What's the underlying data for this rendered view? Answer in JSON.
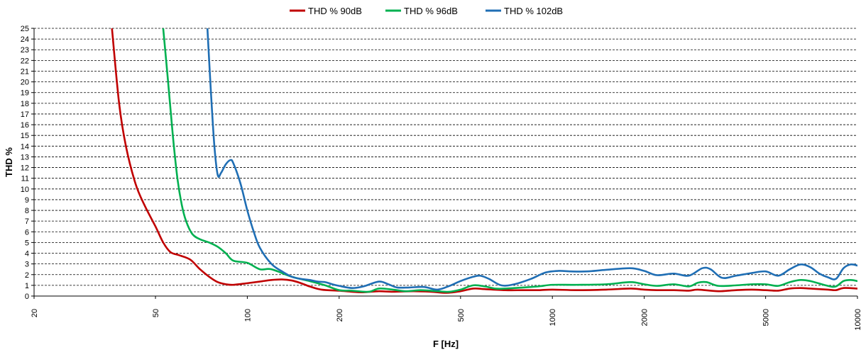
{
  "chart_data": {
    "type": "line",
    "xlabel": "F [Hz]",
    "ylabel": "THD %",
    "xscale": "log",
    "xlim": [
      20,
      10000
    ],
    "ylim": [
      0,
      25
    ],
    "xticks": [
      20,
      50,
      100,
      200,
      500,
      1000,
      2000,
      5000,
      10000
    ],
    "yticks": [
      0,
      1,
      2,
      3,
      4,
      5,
      6,
      7,
      8,
      9,
      10,
      11,
      12,
      13,
      14,
      15,
      16,
      17,
      18,
      19,
      20,
      21,
      22,
      23,
      24,
      25
    ],
    "grid": true,
    "legend": "top-center",
    "series": [
      {
        "name": "THD % 90dB",
        "color": "#c00000",
        "points": [
          [
            36,
            25
          ],
          [
            38,
            18
          ],
          [
            40,
            14
          ],
          [
            43,
            10.5
          ],
          [
            46,
            8.5
          ],
          [
            50,
            6.5
          ],
          [
            53,
            5
          ],
          [
            56,
            4.1
          ],
          [
            60,
            3.8
          ],
          [
            65,
            3.4
          ],
          [
            70,
            2.5
          ],
          [
            75,
            1.8
          ],
          [
            80,
            1.3
          ],
          [
            85,
            1.1
          ],
          [
            90,
            1.05
          ],
          [
            100,
            1.2
          ],
          [
            110,
            1.35
          ],
          [
            120,
            1.5
          ],
          [
            130,
            1.55
          ],
          [
            140,
            1.45
          ],
          [
            150,
            1.2
          ],
          [
            160,
            0.9
          ],
          [
            175,
            0.6
          ],
          [
            200,
            0.5
          ],
          [
            220,
            0.4
          ],
          [
            240,
            0.35
          ],
          [
            270,
            0.45
          ],
          [
            300,
            0.4
          ],
          [
            350,
            0.45
          ],
          [
            400,
            0.4
          ],
          [
            450,
            0.3
          ],
          [
            500,
            0.45
          ],
          [
            550,
            0.7
          ],
          [
            600,
            0.65
          ],
          [
            700,
            0.55
          ],
          [
            800,
            0.55
          ],
          [
            900,
            0.55
          ],
          [
            1000,
            0.6
          ],
          [
            1200,
            0.55
          ],
          [
            1500,
            0.6
          ],
          [
            1800,
            0.7
          ],
          [
            2000,
            0.6
          ],
          [
            2200,
            0.55
          ],
          [
            2500,
            0.55
          ],
          [
            2800,
            0.5
          ],
          [
            3000,
            0.6
          ],
          [
            3500,
            0.45
          ],
          [
            4000,
            0.55
          ],
          [
            4500,
            0.6
          ],
          [
            5000,
            0.55
          ],
          [
            5500,
            0.5
          ],
          [
            6000,
            0.7
          ],
          [
            6500,
            0.75
          ],
          [
            7000,
            0.7
          ],
          [
            8000,
            0.6
          ],
          [
            8500,
            0.55
          ],
          [
            9000,
            0.75
          ],
          [
            10000,
            0.7
          ]
        ]
      },
      {
        "name": "THD % 96dB",
        "color": "#00b050",
        "points": [
          [
            53,
            25
          ],
          [
            55,
            20
          ],
          [
            57,
            15
          ],
          [
            59,
            11
          ],
          [
            61,
            8.5
          ],
          [
            63,
            7
          ],
          [
            66,
            5.8
          ],
          [
            70,
            5.3
          ],
          [
            75,
            5
          ],
          [
            80,
            4.6
          ],
          [
            85,
            4
          ],
          [
            90,
            3.3
          ],
          [
            100,
            3.1
          ],
          [
            110,
            2.5
          ],
          [
            120,
            2.5
          ],
          [
            140,
            1.8
          ],
          [
            160,
            1.4
          ],
          [
            180,
            1
          ],
          [
            200,
            0.55
          ],
          [
            220,
            0.5
          ],
          [
            250,
            0.4
          ],
          [
            270,
            0.7
          ],
          [
            300,
            0.6
          ],
          [
            330,
            0.45
          ],
          [
            370,
            0.55
          ],
          [
            420,
            0.45
          ],
          [
            460,
            0.4
          ],
          [
            500,
            0.6
          ],
          [
            550,
            1
          ],
          [
            600,
            0.9
          ],
          [
            650,
            0.7
          ],
          [
            700,
            0.7
          ],
          [
            800,
            0.8
          ],
          [
            900,
            0.9
          ],
          [
            1000,
            1.05
          ],
          [
            1200,
            1.05
          ],
          [
            1500,
            1.1
          ],
          [
            1800,
            1.3
          ],
          [
            2000,
            1.1
          ],
          [
            2200,
            0.95
          ],
          [
            2500,
            1.1
          ],
          [
            2800,
            0.9
          ],
          [
            3000,
            1.25
          ],
          [
            3200,
            1.3
          ],
          [
            3500,
            0.95
          ],
          [
            4000,
            1
          ],
          [
            4500,
            1.1
          ],
          [
            5000,
            1.1
          ],
          [
            5500,
            0.95
          ],
          [
            6000,
            1.3
          ],
          [
            6500,
            1.5
          ],
          [
            7000,
            1.4
          ],
          [
            8000,
            0.95
          ],
          [
            8500,
            0.9
          ],
          [
            9000,
            1.4
          ],
          [
            9500,
            1.5
          ],
          [
            10000,
            1.4
          ]
        ]
      },
      {
        "name": "THD % 102dB",
        "color": "#1f6eb4",
        "points": [
          [
            74,
            25
          ],
          [
            76,
            19
          ],
          [
            78,
            14
          ],
          [
            80,
            11.3
          ],
          [
            82,
            11.5
          ],
          [
            85,
            12.3
          ],
          [
            88,
            12.7
          ],
          [
            90,
            12.4
          ],
          [
            95,
            10.5
          ],
          [
            100,
            8
          ],
          [
            105,
            6
          ],
          [
            110,
            4.5
          ],
          [
            120,
            3
          ],
          [
            130,
            2.3
          ],
          [
            140,
            1.8
          ],
          [
            150,
            1.6
          ],
          [
            160,
            1.5
          ],
          [
            170,
            1.35
          ],
          [
            180,
            1.3
          ],
          [
            190,
            1.1
          ],
          [
            200,
            0.95
          ],
          [
            220,
            0.75
          ],
          [
            240,
            0.9
          ],
          [
            270,
            1.35
          ],
          [
            290,
            1.1
          ],
          [
            310,
            0.8
          ],
          [
            340,
            0.8
          ],
          [
            380,
            0.85
          ],
          [
            420,
            0.6
          ],
          [
            460,
            0.95
          ],
          [
            500,
            1.4
          ],
          [
            550,
            1.8
          ],
          [
            580,
            1.9
          ],
          [
            620,
            1.6
          ],
          [
            680,
            1
          ],
          [
            750,
            1.1
          ],
          [
            850,
            1.6
          ],
          [
            950,
            2.2
          ],
          [
            1050,
            2.35
          ],
          [
            1150,
            2.3
          ],
          [
            1300,
            2.3
          ],
          [
            1500,
            2.45
          ],
          [
            1800,
            2.6
          ],
          [
            2000,
            2.35
          ],
          [
            2200,
            1.95
          ],
          [
            2500,
            2.1
          ],
          [
            2800,
            1.9
          ],
          [
            3100,
            2.6
          ],
          [
            3300,
            2.5
          ],
          [
            3600,
            1.7
          ],
          [
            4000,
            1.9
          ],
          [
            4500,
            2.15
          ],
          [
            5000,
            2.3
          ],
          [
            5500,
            1.9
          ],
          [
            6000,
            2.5
          ],
          [
            6500,
            2.95
          ],
          [
            7000,
            2.7
          ],
          [
            7500,
            2.1
          ],
          [
            8000,
            1.75
          ],
          [
            8500,
            1.6
          ],
          [
            9000,
            2.6
          ],
          [
            9500,
            2.95
          ],
          [
            10000,
            2.85
          ]
        ]
      }
    ]
  }
}
